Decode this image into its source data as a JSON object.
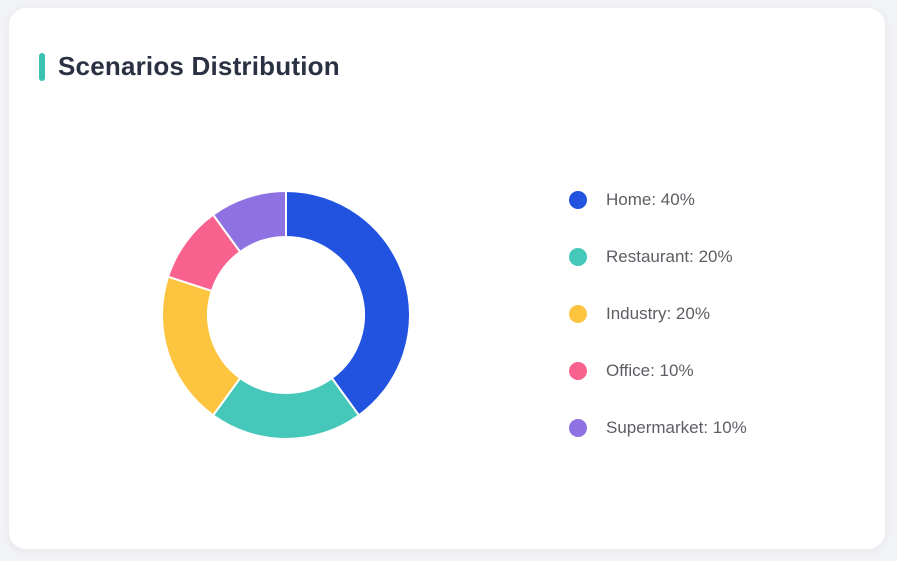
{
  "page": {
    "background_color": "#f2f3f6"
  },
  "card": {
    "title": "Scenarios Distribution",
    "accent_color": "#3ac2b3",
    "background_color": "#ffffff",
    "title_color": "#2a3142"
  },
  "chart_data": {
    "type": "pie",
    "variant": "donut",
    "title": "Scenarios Distribution",
    "categories": [
      "Home",
      "Restaurant",
      "Industry",
      "Office",
      "Supermarket"
    ],
    "values": [
      40,
      20,
      20,
      10,
      10
    ],
    "unit": "%",
    "colors": [
      "#2253e0",
      "#45c7ba",
      "#fdc440",
      "#f9618e",
      "#8f72e2"
    ],
    "start_angle_deg": 0,
    "direction": "clockwise",
    "inner_radius_ratio": 0.63,
    "slice_gap_color": "#ffffff",
    "legend_position": "right",
    "legend": [
      {
        "label": "Home: 40%",
        "color": "#2253e0"
      },
      {
        "label": "Restaurant: 20%",
        "color": "#45c7ba"
      },
      {
        "label": "Industry: 20%",
        "color": "#fdc440"
      },
      {
        "label": "Office: 10%",
        "color": "#f9618e"
      },
      {
        "label": "Supermarket: 10%",
        "color": "#8f72e2"
      }
    ]
  }
}
